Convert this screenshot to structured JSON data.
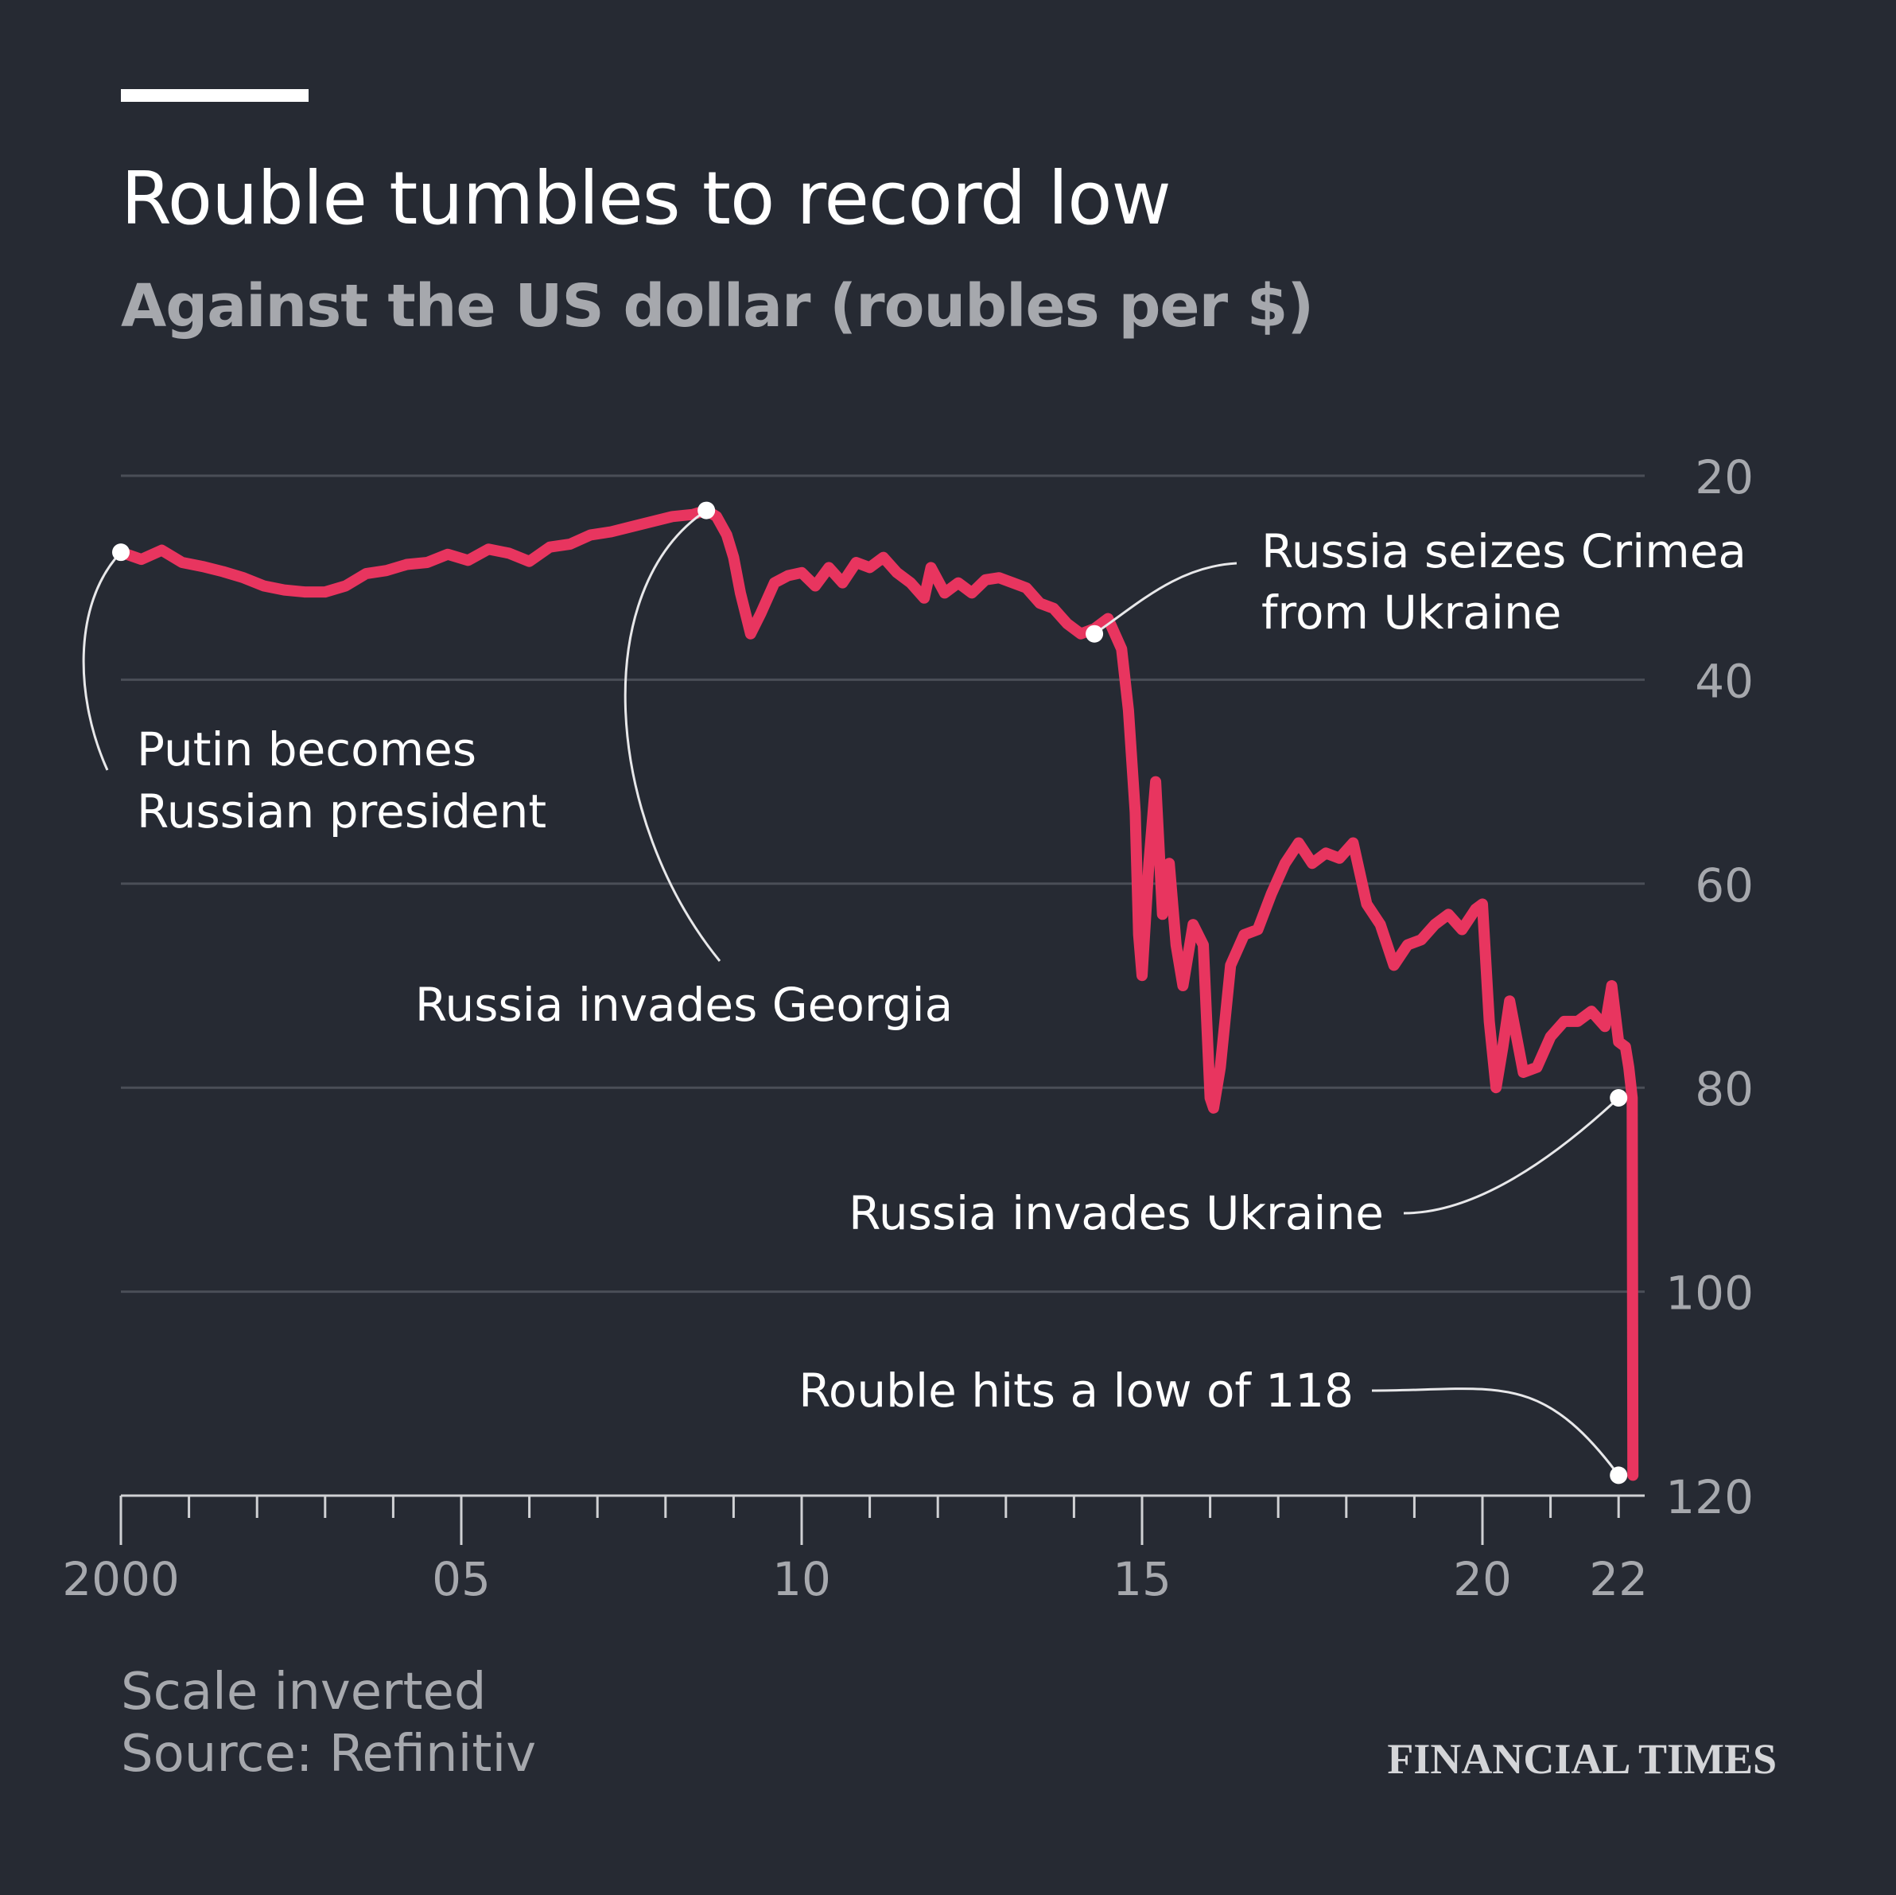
{
  "header": {
    "title": "Rouble tumbles to record low",
    "subtitle": "Against the US dollar (roubles per $)"
  },
  "footer": {
    "note": "Scale inverted",
    "source": "Source: Refinitiv",
    "brand": "FINANCIAL TIMES"
  },
  "colors": {
    "background": "#262a33",
    "line": "#e8355f",
    "grid": "#4a4e57",
    "text": "#ffffff",
    "muted": "#a6a8ad"
  },
  "chart_data": {
    "type": "line",
    "title": "Rouble tumbles to record low",
    "subtitle": "Against the US dollar (roubles per $)",
    "y_inverted": true,
    "ylim": [
      20,
      120
    ],
    "y_ticks": [
      20,
      40,
      60,
      80,
      100,
      120
    ],
    "y_tick_labels": [
      "20",
      "40",
      "60",
      "80",
      "100",
      "120"
    ],
    "xlim": [
      2000,
      2022.2
    ],
    "x_ticks": [
      2000,
      2005,
      2010,
      2015,
      2020,
      2022
    ],
    "x_tick_labels": [
      "2000",
      "05",
      "10",
      "15",
      "20",
      "22"
    ],
    "x_minor_ticks": [
      2001,
      2002,
      2003,
      2004,
      2006,
      2007,
      2008,
      2009,
      2011,
      2012,
      2013,
      2014,
      2016,
      2017,
      2018,
      2019,
      2021
    ],
    "grid": "horizontal",
    "series": [
      {
        "x": [
          2000.0,
          2000.3,
          2000.6,
          2000.9,
          2001.2,
          2001.5,
          2001.8,
          2002.1,
          2002.4,
          2002.7,
          2003.0,
          2003.3,
          2003.6,
          2003.9,
          2004.2,
          2004.5,
          2004.8,
          2005.1,
          2005.4,
          2005.7,
          2006.0,
          2006.3,
          2006.6,
          2006.9,
          2007.2,
          2007.5,
          2007.8,
          2008.1,
          2008.4,
          2008.6,
          2008.75,
          2008.9,
          2009.0,
          2009.1,
          2009.25,
          2009.4,
          2009.6,
          2009.8,
          2010.0,
          2010.2,
          2010.4,
          2010.6,
          2010.8,
          2011.0,
          2011.2,
          2011.4,
          2011.6,
          2011.8,
          2011.9,
          2012.1,
          2012.3,
          2012.5,
          2012.7,
          2012.9,
          2013.1,
          2013.3,
          2013.5,
          2013.7,
          2013.9,
          2014.1,
          2014.3,
          2014.5,
          2014.7,
          2014.8,
          2014.9,
          2014.95,
          2015.0,
          2015.1,
          2015.2,
          2015.3,
          2015.4,
          2015.5,
          2015.6,
          2015.75,
          2015.9,
          2016.0,
          2016.05,
          2016.15,
          2016.3,
          2016.5,
          2016.7,
          2016.9,
          2017.1,
          2017.3,
          2017.5,
          2017.7,
          2017.9,
          2018.1,
          2018.3,
          2018.5,
          2018.7,
          2018.9,
          2019.1,
          2019.3,
          2019.5,
          2019.7,
          2019.9,
          2020.0,
          2020.1,
          2020.2,
          2020.3,
          2020.4,
          2020.5,
          2020.6,
          2020.8,
          2021.0,
          2021.2,
          2021.4,
          2021.6,
          2021.8,
          2021.9,
          2022.0,
          2022.1,
          2022.15,
          2022.2,
          2022.21
        ],
        "y": [
          27.5,
          28.2,
          27.3,
          28.5,
          28.9,
          29.4,
          30.0,
          30.8,
          31.2,
          31.4,
          31.4,
          30.8,
          29.6,
          29.3,
          28.7,
          28.5,
          27.7,
          28.3,
          27.2,
          27.6,
          28.4,
          27.0,
          26.7,
          25.8,
          25.5,
          25.0,
          24.5,
          24.0,
          23.8,
          23.4,
          24.0,
          25.8,
          28.0,
          31.5,
          35.5,
          33.5,
          30.5,
          29.8,
          29.5,
          30.8,
          29.0,
          30.5,
          28.5,
          29.0,
          28.0,
          29.5,
          30.5,
          32.0,
          29.0,
          31.5,
          30.5,
          31.5,
          30.2,
          30.0,
          30.5,
          31.0,
          32.5,
          33.0,
          34.5,
          35.5,
          35.0,
          34.0,
          37.0,
          43.0,
          53.0,
          65.0,
          69.0,
          58.0,
          50.0,
          63.0,
          58.0,
          66.0,
          70.0,
          64.0,
          66.0,
          81.0,
          82.0,
          78.0,
          68.0,
          65.0,
          64.5,
          61.0,
          58.0,
          56.0,
          58.0,
          57.0,
          57.5,
          56.0,
          62.0,
          64.0,
          68.0,
          66.0,
          65.5,
          64.0,
          63.0,
          64.5,
          62.5,
          62.0,
          73.5,
          80.0,
          76.0,
          71.5,
          75.0,
          78.5,
          78.0,
          75.0,
          73.5,
          73.5,
          72.5,
          74.0,
          70.0,
          75.5,
          76.0,
          78.0,
          81.0,
          118.0
        ]
      }
    ],
    "annotations": [
      {
        "label_lines": [
          "Putin becomes",
          "Russian president"
        ],
        "x": 2000.0,
        "y": 27.5
      },
      {
        "label_lines": [
          "Russia invades Georgia"
        ],
        "x": 2008.6,
        "y": 23.4
      },
      {
        "label_lines": [
          "Russia seizes Crimea",
          "from Ukraine"
        ],
        "x": 2014.3,
        "y": 35.5
      },
      {
        "label_lines": [
          "Russia invades Ukraine"
        ],
        "x": 2022.0,
        "y": 81.0
      },
      {
        "label_lines": [
          "Rouble hits a low of 118"
        ],
        "x": 2022.0,
        "y": 118.0
      }
    ]
  }
}
